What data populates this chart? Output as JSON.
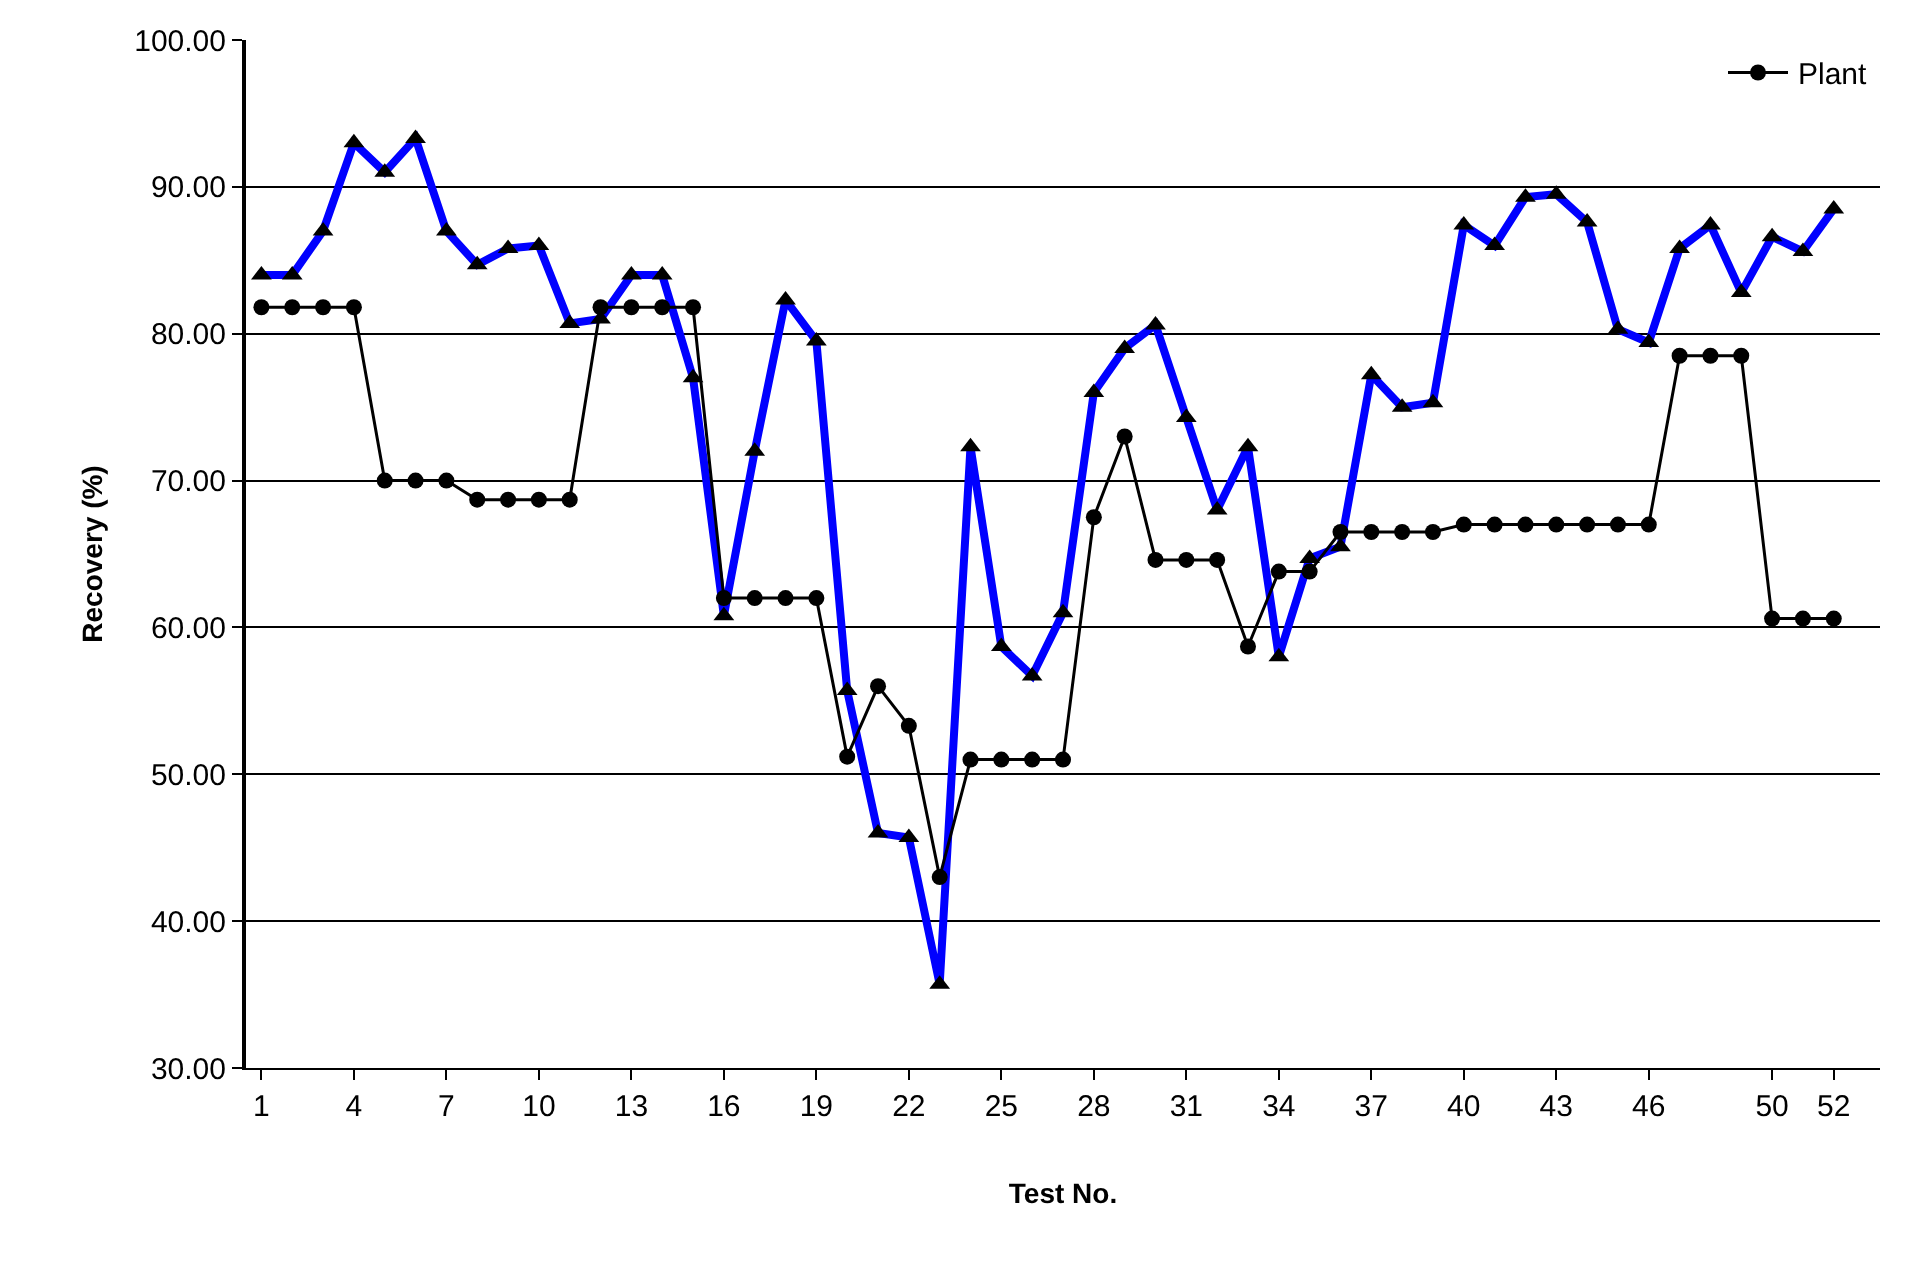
{
  "chart_data": {
    "type": "line",
    "xlabel": "Test No.",
    "ylabel": "Recovery (%)",
    "x": [
      1,
      2,
      3,
      4,
      5,
      6,
      7,
      8,
      9,
      10,
      11,
      12,
      13,
      14,
      15,
      16,
      17,
      18,
      19,
      20,
      21,
      22,
      23,
      24,
      25,
      26,
      27,
      28,
      29,
      30,
      31,
      32,
      33,
      34,
      35,
      36,
      37,
      38,
      39,
      40,
      41,
      42,
      43,
      44,
      45,
      46,
      47,
      48,
      49,
      50,
      51,
      52
    ],
    "series": [
      {
        "name": "Plant",
        "color": "#000000",
        "marker": "circle",
        "values": [
          81.8,
          81.8,
          81.8,
          81.8,
          70.0,
          70.0,
          70.0,
          68.7,
          68.7,
          68.7,
          68.7,
          81.8,
          81.8,
          81.8,
          81.8,
          62.0,
          62.0,
          62.0,
          62.0,
          51.2,
          56.0,
          53.3,
          43.0,
          51.0,
          51.0,
          51.0,
          51.0,
          67.5,
          73.0,
          64.6,
          64.6,
          64.6,
          58.7,
          63.8,
          63.8,
          66.5,
          66.5,
          66.5,
          66.5,
          67.0,
          67.0,
          67.0,
          67.0,
          67.0,
          67.0,
          67.0,
          78.5,
          78.5,
          78.5,
          60.6,
          60.6,
          60.6
        ]
      },
      {
        "color": "#0000ff",
        "marker": "triangle",
        "values": [
          84,
          84,
          87,
          93,
          91,
          93.3,
          87,
          84.7,
          85.8,
          86,
          80.7,
          81,
          84,
          84,
          77,
          60.8,
          72,
          82.3,
          79.5,
          55.7,
          46,
          45.7,
          35.7,
          72.3,
          58.7,
          56.7,
          61,
          76,
          79,
          80.6,
          74.3,
          68,
          72.3,
          58,
          64.7,
          65.5,
          77.2,
          75,
          75.3,
          87.4,
          86,
          89.3,
          89.5,
          87.6,
          80.3,
          79.4,
          85.8,
          87.4,
          82.8,
          86.6,
          85.6,
          88.5
        ]
      }
    ],
    "xlim": [
      0.5,
      53.5
    ],
    "xticks": [
      1,
      4,
      7,
      10,
      13,
      16,
      19,
      22,
      25,
      28,
      31,
      34,
      37,
      40,
      43,
      46,
      50,
      52
    ],
    "ylim": [
      30,
      100
    ],
    "yticks": [
      {
        "value": 30,
        "label": "30.00"
      },
      {
        "value": 40,
        "label": "40.00"
      },
      {
        "value": 50,
        "label": "50.00"
      },
      {
        "value": 60,
        "label": "60.00"
      },
      {
        "value": 70,
        "label": "70.00"
      },
      {
        "value": 80,
        "label": "80.00"
      },
      {
        "value": 90,
        "label": "90.00"
      },
      {
        "value": 100,
        "label": "100.00"
      }
    ],
    "grid": "y",
    "legend": "top right",
    "line_style": "solid"
  }
}
